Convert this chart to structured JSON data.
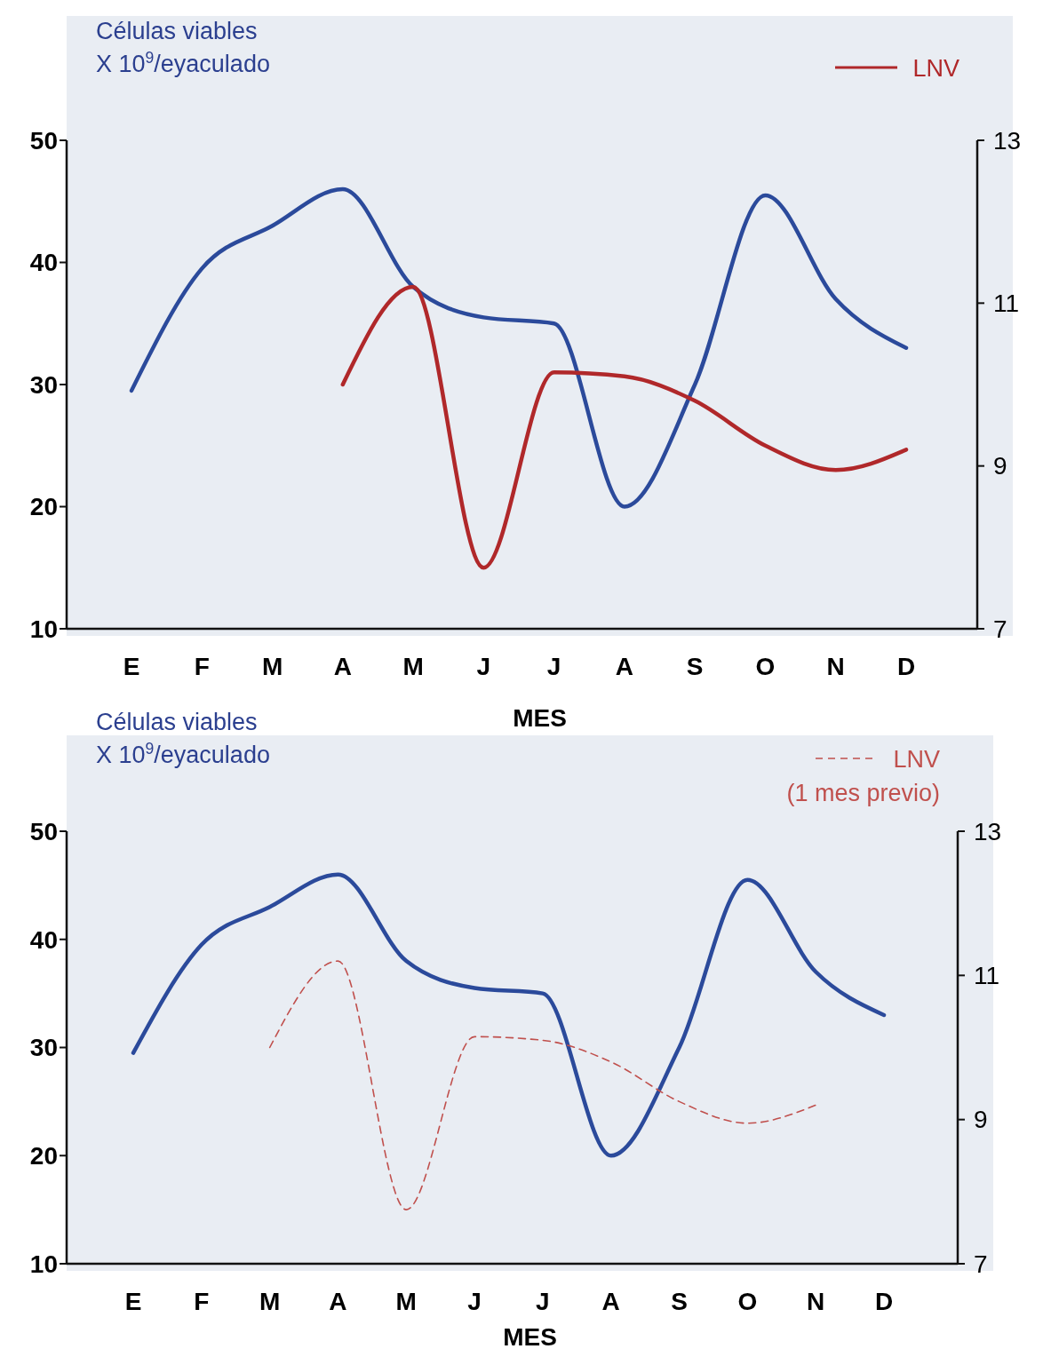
{
  "chart_data": [
    {
      "type": "line",
      "ylabel": "Células viables\nX 10$^{9}$/eyaculado",
      "xlabel": "MES",
      "categories": [
        "E",
        "F",
        "M",
        "A",
        "M",
        "J",
        "J",
        "A",
        "S",
        "O",
        "N",
        "D"
      ],
      "ylim": [
        10,
        50
      ],
      "yticks": [
        10,
        20,
        30,
        40,
        50
      ],
      "y2lim": [
        7,
        13
      ],
      "y2ticks": [
        7,
        9,
        11,
        13
      ],
      "legend": "top right",
      "series": [
        {
          "color": "#2b4a9b",
          "line_style": "solid",
          "values": [
            29.5,
            39.5,
            43,
            46,
            38,
            35.5,
            35,
            20,
            30,
            45.5,
            37,
            33
          ]
        },
        {
          "name": "LNV",
          "axis": "y2",
          "color": "#b0282a",
          "line_style": "solid",
          "values": [
            null,
            null,
            null,
            10,
            11.2,
            7.75,
            10.15,
            10.1,
            9.8,
            9.25,
            8.95,
            9.2
          ]
        }
      ]
    },
    {
      "type": "line",
      "ylabel": "Células viables\nX 10$^{9}$/eyaculado",
      "xlabel": "MES",
      "categories": [
        "E",
        "F",
        "M",
        "A",
        "M",
        "J",
        "J",
        "A",
        "S",
        "O",
        "N",
        "D"
      ],
      "ylim": [
        10,
        50
      ],
      "yticks": [
        10,
        20,
        30,
        40,
        50
      ],
      "y2lim": [
        7,
        13
      ],
      "y2ticks": [
        7,
        9,
        11,
        13
      ],
      "legend": "top right",
      "series": [
        {
          "color": "#2b4a9b",
          "line_style": "solid",
          "values": [
            29.5,
            39.5,
            43,
            46,
            38,
            35.5,
            35,
            20,
            30,
            45.5,
            37,
            33
          ]
        },
        {
          "name": "LNV\n(1 mes previo)",
          "axis": "y2",
          "color": "#c0504d",
          "line_style": "dashed",
          "values": [
            null,
            null,
            10,
            11.2,
            7.75,
            10.15,
            10.1,
            9.8,
            9.25,
            8.95,
            9.2,
            null
          ]
        }
      ]
    }
  ]
}
